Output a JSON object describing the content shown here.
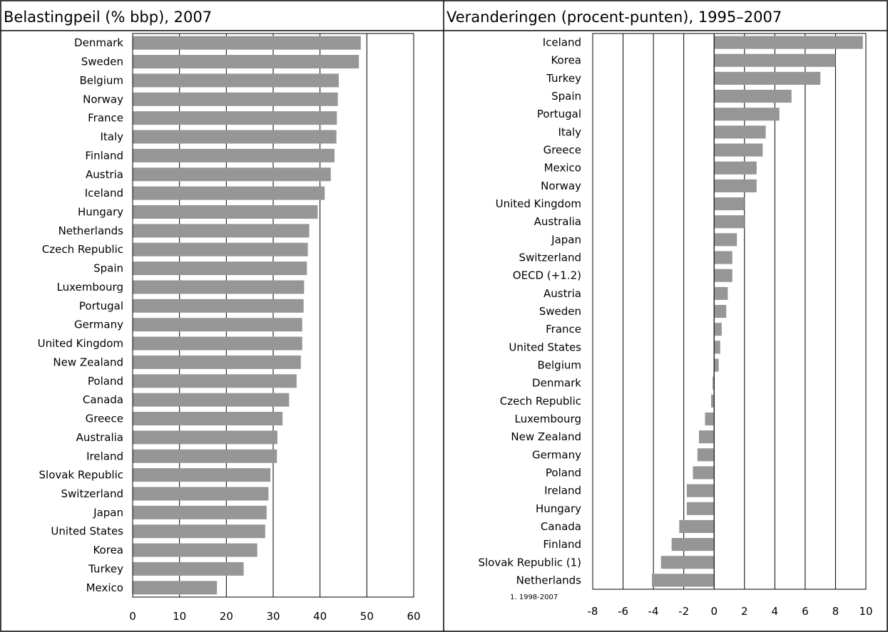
{
  "chart_data": [
    {
      "type": "bar",
      "orientation": "horizontal",
      "title": "Belastingpeil (% bbp), 2007",
      "xlim": [
        0,
        60
      ],
      "xticks": [
        "0",
        "10",
        "20",
        "30",
        "40",
        "50",
        "60"
      ],
      "grid": true,
      "bar_color": "#969696",
      "categories": [
        "Denmark",
        "Sweden",
        "Belgium",
        "Norway",
        "France",
        "Italy",
        "Finland",
        "Austria",
        "Iceland",
        "Hungary",
        "Netherlands",
        "Czech Republic",
        "Spain",
        "Luxembourg",
        "Portugal",
        "Germany",
        "United Kingdom",
        "New Zealand",
        "Poland",
        "Canada",
        "Greece",
        "Australia",
        "Ireland",
        "Slovak Republic",
        "Switzerland",
        "Japan",
        "United States",
        "Korea",
        "Turkey",
        "Mexico"
      ],
      "values": [
        48.7,
        48.3,
        44.0,
        43.8,
        43.6,
        43.5,
        43.1,
        42.3,
        41.0,
        39.5,
        37.7,
        37.4,
        37.2,
        36.6,
        36.5,
        36.2,
        36.2,
        35.9,
        35.0,
        33.4,
        32.0,
        30.9,
        30.8,
        29.4,
        29.0,
        28.6,
        28.3,
        26.6,
        23.7,
        18.0
      ]
    },
    {
      "type": "bar",
      "orientation": "horizontal",
      "title": "Veranderingen (procent-punten), 1995–2007",
      "xlim": [
        -8,
        10
      ],
      "xticks": [
        "-8",
        "-6",
        "-4",
        "-2",
        "0",
        "2",
        "4",
        "6",
        "8",
        "10"
      ],
      "grid": true,
      "bar_color": "#969696",
      "footnote": "1. 1998-2007",
      "categories": [
        "Iceland",
        "Korea",
        "Turkey",
        "Spain",
        "Portugal",
        "Italy",
        "Greece",
        "Mexico",
        "Norway",
        "United Kingdom",
        "Australia",
        "Japan",
        "Switzerland",
        "OECD (+1.2)",
        "Austria",
        "Sweden",
        "France",
        "United States",
        "Belgium",
        "Denmark",
        "Czech Republic",
        "Luxembourg",
        "New Zealand",
        "Germany",
        "Poland",
        "Ireland",
        "Hungary",
        "Canada",
        "Finland",
        "Slovak Republic (1)",
        "Netherlands"
      ],
      "values": [
        9.8,
        8.0,
        7.0,
        5.1,
        4.3,
        3.4,
        3.2,
        2.8,
        2.8,
        2.0,
        2.0,
        1.5,
        1.2,
        1.2,
        0.9,
        0.8,
        0.5,
        0.4,
        0.3,
        -0.1,
        -0.2,
        -0.6,
        -1.0,
        -1.1,
        -1.4,
        -1.8,
        -1.8,
        -2.3,
        -2.8,
        -3.5,
        -4.1
      ]
    }
  ]
}
